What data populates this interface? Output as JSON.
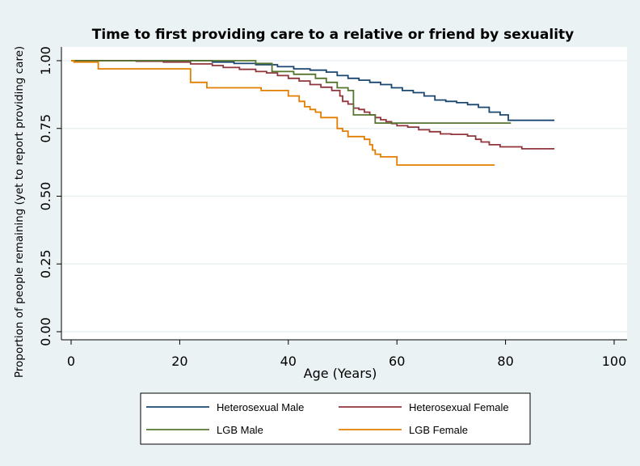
{
  "chart_data": {
    "type": "line",
    "title": "Time to first providing care to a relative or friend by sexuality",
    "xlabel": "Age (Years)",
    "ylabel": "Proportion of people remaining (yet to report providing care)",
    "xlim": [
      0,
      100
    ],
    "ylim": [
      0,
      1
    ],
    "x_ticks": [
      0,
      20,
      40,
      60,
      80,
      100
    ],
    "x_tick_labels": [
      "0",
      "20",
      "40",
      "60",
      "80",
      "100"
    ],
    "y_ticks": [
      0,
      0.25,
      0.5,
      0.75,
      1.0
    ],
    "y_tick_labels": [
      "0.00",
      "0.25",
      "0.50",
      "0.75",
      "1.00"
    ],
    "grid": true,
    "legend_position": "bottom",
    "step": true,
    "series": [
      {
        "name": "Heterosexual Male",
        "color": "#1a476f",
        "points": [
          [
            0,
            1.0
          ],
          [
            20,
            1.0
          ],
          [
            26,
            0.995
          ],
          [
            30,
            0.99
          ],
          [
            34,
            0.985
          ],
          [
            38,
            0.978
          ],
          [
            41,
            0.97
          ],
          [
            44,
            0.965
          ],
          [
            47,
            0.958
          ],
          [
            49,
            0.945
          ],
          [
            51,
            0.935
          ],
          [
            53,
            0.928
          ],
          [
            55,
            0.92
          ],
          [
            57,
            0.912
          ],
          [
            59,
            0.9
          ],
          [
            61,
            0.89
          ],
          [
            63,
            0.882
          ],
          [
            65,
            0.87
          ],
          [
            67,
            0.855
          ],
          [
            69,
            0.85
          ],
          [
            71,
            0.845
          ],
          [
            73,
            0.838
          ],
          [
            75,
            0.828
          ],
          [
            77,
            0.81
          ],
          [
            79,
            0.8
          ],
          [
            80.5,
            0.78
          ],
          [
            89,
            0.78
          ]
        ]
      },
      {
        "name": "Heterosexual Female",
        "color": "#90353b",
        "points": [
          [
            0,
            1.0
          ],
          [
            12,
            0.998
          ],
          [
            17,
            0.995
          ],
          [
            22,
            0.988
          ],
          [
            26,
            0.982
          ],
          [
            28,
            0.975
          ],
          [
            31,
            0.968
          ],
          [
            34,
            0.96
          ],
          [
            36,
            0.955
          ],
          [
            38,
            0.945
          ],
          [
            40,
            0.935
          ],
          [
            42,
            0.925
          ],
          [
            44,
            0.912
          ],
          [
            46,
            0.902
          ],
          [
            48,
            0.89
          ],
          [
            49.5,
            0.87
          ],
          [
            50,
            0.85
          ],
          [
            51,
            0.84
          ],
          [
            52,
            0.825
          ],
          [
            53,
            0.82
          ],
          [
            54,
            0.81
          ],
          [
            55,
            0.8
          ],
          [
            56,
            0.79
          ],
          [
            57,
            0.782
          ],
          [
            58,
            0.775
          ],
          [
            59,
            0.768
          ],
          [
            60,
            0.76
          ],
          [
            62,
            0.755
          ],
          [
            64,
            0.745
          ],
          [
            66,
            0.738
          ],
          [
            68,
            0.73
          ],
          [
            70,
            0.728
          ],
          [
            73,
            0.722
          ],
          [
            74.5,
            0.71
          ],
          [
            75.5,
            0.7
          ],
          [
            77,
            0.69
          ],
          [
            79,
            0.682
          ],
          [
            83,
            0.675
          ],
          [
            89,
            0.675
          ]
        ]
      },
      {
        "name": "LGB Male",
        "color": "#55752f",
        "points": [
          [
            0,
            1.0
          ],
          [
            34,
            0.99
          ],
          [
            37,
            0.96
          ],
          [
            41,
            0.95
          ],
          [
            45,
            0.935
          ],
          [
            47,
            0.92
          ],
          [
            49,
            0.9
          ],
          [
            51,
            0.89
          ],
          [
            52,
            0.8
          ],
          [
            56,
            0.77
          ],
          [
            81,
            0.77
          ]
        ]
      },
      {
        "name": "LGB Female",
        "color": "#e37e00",
        "points": [
          [
            0,
            1.0
          ],
          [
            0.5,
            0.995
          ],
          [
            5,
            0.97
          ],
          [
            22,
            0.92
          ],
          [
            25,
            0.9
          ],
          [
            35,
            0.89
          ],
          [
            40,
            0.87
          ],
          [
            42,
            0.85
          ],
          [
            43,
            0.83
          ],
          [
            44,
            0.82
          ],
          [
            45,
            0.81
          ],
          [
            46,
            0.79
          ],
          [
            49,
            0.75
          ],
          [
            50,
            0.74
          ],
          [
            51,
            0.72
          ],
          [
            54,
            0.71
          ],
          [
            55,
            0.69
          ],
          [
            55.5,
            0.67
          ],
          [
            56,
            0.655
          ],
          [
            57,
            0.645
          ],
          [
            60,
            0.615
          ],
          [
            78,
            0.615
          ]
        ]
      }
    ]
  }
}
